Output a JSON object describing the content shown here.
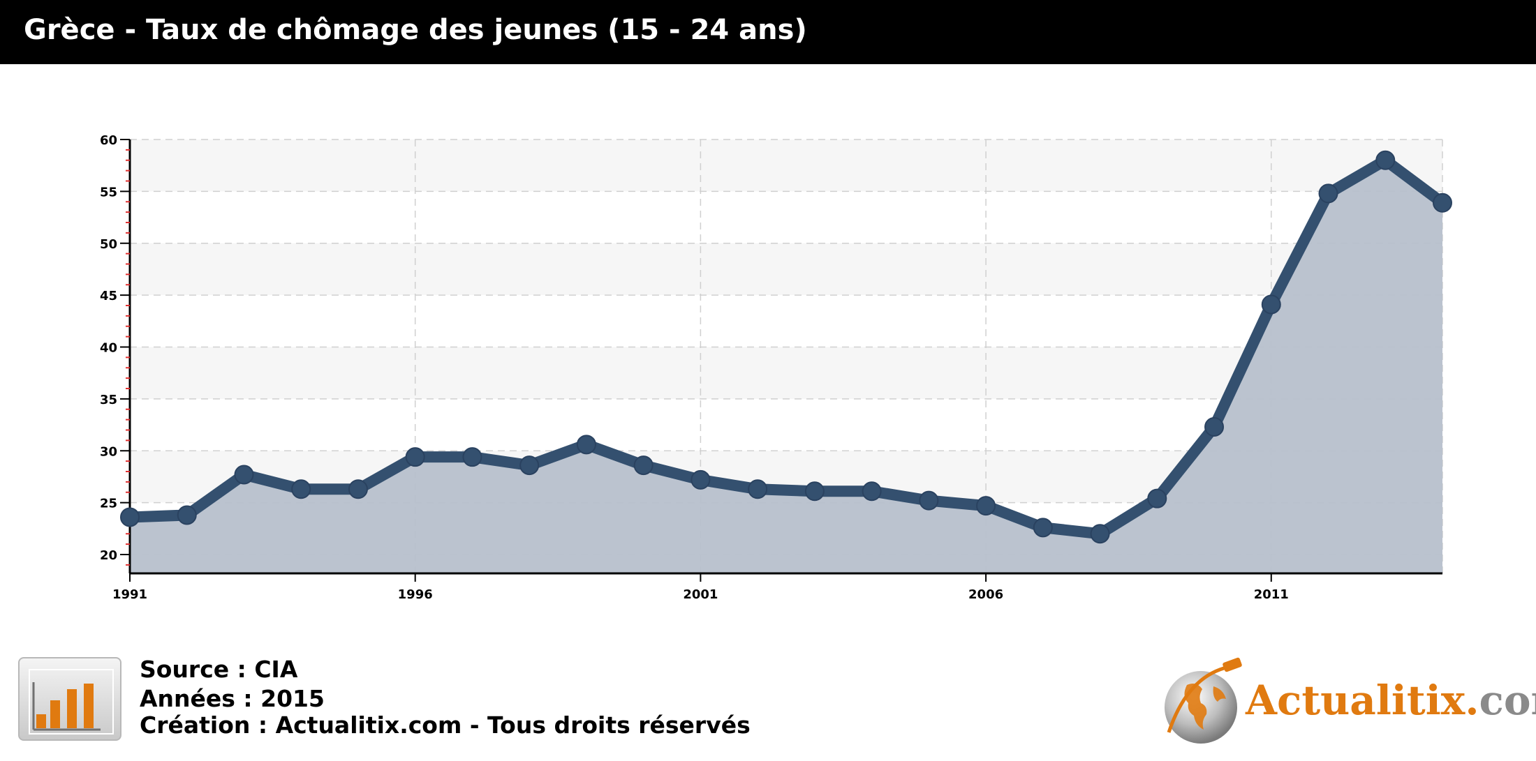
{
  "header": {
    "title": "Grèce - Taux de chômage des jeunes (15 - 24 ans)"
  },
  "chart_data": {
    "type": "area",
    "title": "Grèce - Taux de chômage des jeunes (15 - 24 ans)",
    "xlabel": "",
    "ylabel": "",
    "x": [
      1991,
      1992,
      1993,
      1994,
      1995,
      1996,
      1997,
      1998,
      1999,
      2000,
      2001,
      2002,
      2003,
      2004,
      2005,
      2006,
      2007,
      2008,
      2009,
      2010,
      2011,
      2012,
      2013,
      2014
    ],
    "series": [
      {
        "values": [
          23.6,
          23.8,
          27.7,
          26.3,
          26.3,
          29.4,
          29.4,
          28.6,
          30.6,
          28.6,
          27.2,
          26.3,
          26.1,
          26.1,
          25.2,
          24.7,
          22.6,
          22.0,
          25.4,
          32.3,
          44.1,
          54.8,
          58.0,
          53.9
        ]
      }
    ],
    "xlim": [
      1991,
      2014
    ],
    "ylim": [
      18,
      60
    ],
    "yticks": [
      20,
      25,
      30,
      35,
      40,
      45,
      50,
      55,
      60
    ],
    "xticks": [
      1991,
      1996,
      2001,
      2006,
      2011
    ],
    "grid": true,
    "legend": "none",
    "colors": {
      "line": "#34506f",
      "fill": "#b7c0cc",
      "band": "#f6f6f6",
      "grid": "#d0d0d0",
      "axis": "#000000",
      "minor_tick": "#e03030"
    }
  },
  "footer": {
    "source": "Source : CIA",
    "annees": "Années : 2015",
    "creation": "Création : Actualitix.com - Tous droits réservés",
    "icon": "bar-chart-icon"
  },
  "logo": {
    "name": "Actualitix",
    "dot": ".",
    "tld": "com",
    "icon": "globe-icon"
  }
}
